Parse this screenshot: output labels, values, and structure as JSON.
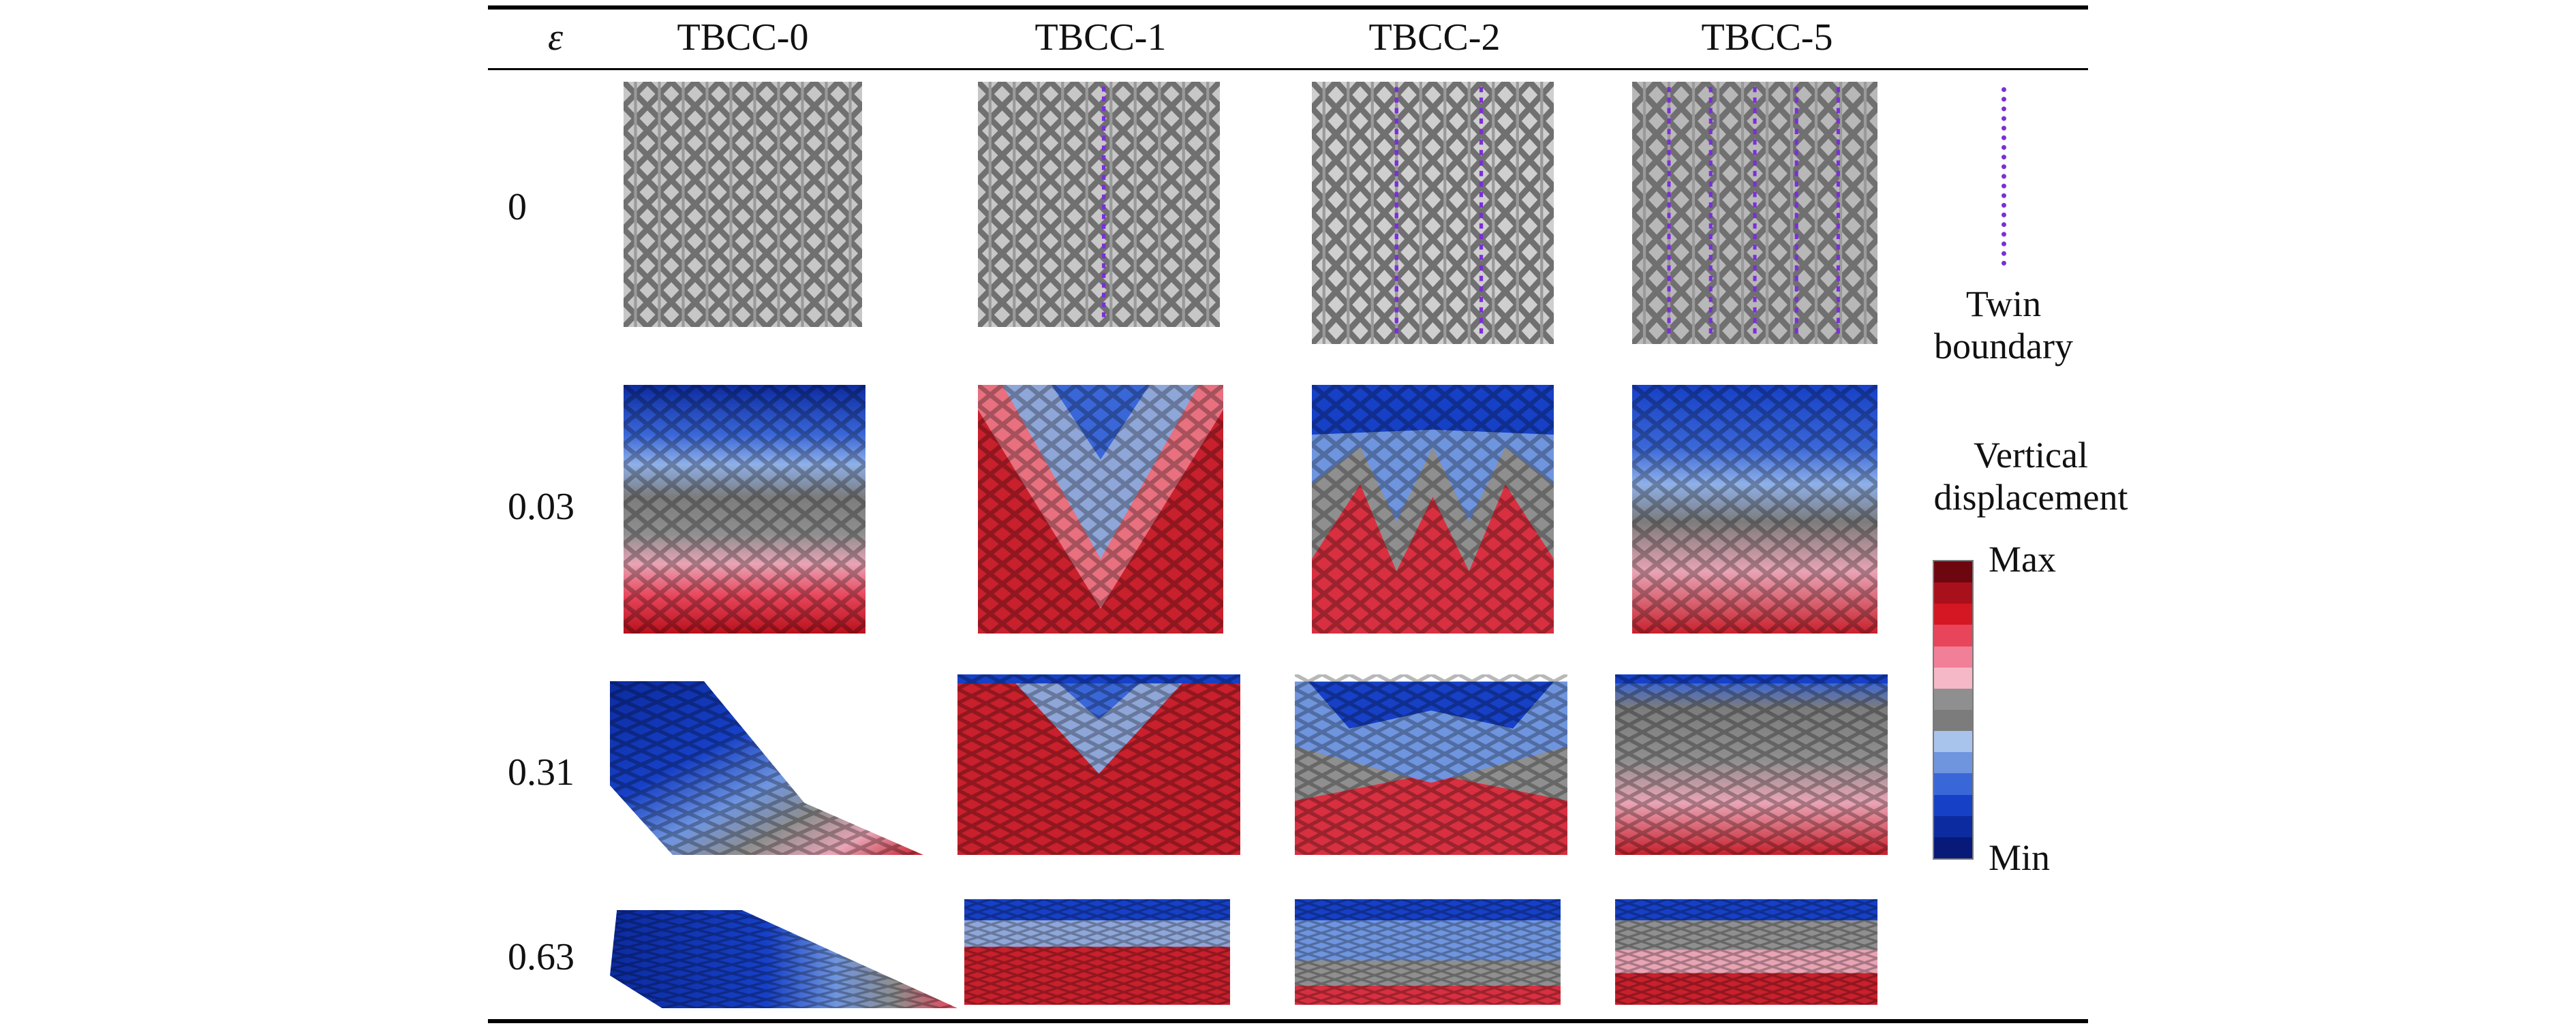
{
  "header": {
    "strain_symbol": "ε",
    "columns": [
      "TBCC-0",
      "TBCC-1",
      "TBCC-2",
      "TBCC-5"
    ]
  },
  "rows": [
    "0",
    "0.03",
    "0.31",
    "0.63"
  ],
  "legend": {
    "twin_boundary_line1": "Twin",
    "twin_boundary_line2": "boundary",
    "displacement_line1": "Vertical",
    "displacement_line2": "displacement",
    "max_label": "Max",
    "min_label": "Min",
    "colorbar": [
      "#6e0610",
      "#a8101b",
      "#d41722",
      "#e8455b",
      "#f27f98",
      "#f4b8c6",
      "#8f8f8f",
      "#7c7c7c",
      "#a9c4ec",
      "#6f95df",
      "#3a67d8",
      "#1640c6",
      "#0c2ba0",
      "#071a7a"
    ]
  },
  "colors": {
    "twin_boundary": "#7b2fd6",
    "lattice_gray": "#8a8a8a"
  }
}
